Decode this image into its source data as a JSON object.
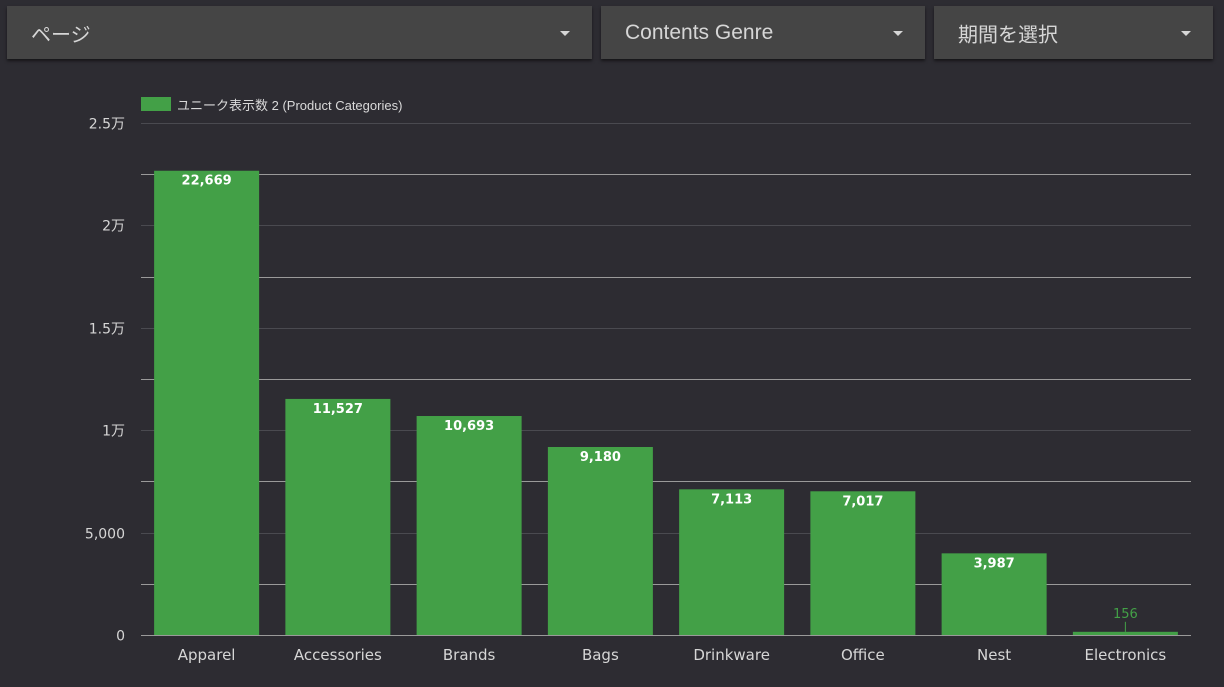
{
  "filters": {
    "page": {
      "label": "ページ"
    },
    "genre": {
      "label": "Contents Genre"
    },
    "period": {
      "label": "期間を選択"
    }
  },
  "colors": {
    "background": "#2d2c32",
    "bar": "#43a047",
    "grid_major": "#9a9a9a",
    "grid_minor": "#4a4a50",
    "axis_text": "#d6d6d6",
    "inside_label": "#ffffff",
    "outside_label": "#43a047"
  },
  "chart_data": {
    "type": "bar",
    "categories": [
      "Apparel",
      "Accessories",
      "Brands",
      "Bags",
      "Drinkware",
      "Office",
      "Nest",
      "Electronics"
    ],
    "series": [
      {
        "name": "ユニーク表示数 2 (Product Categories)",
        "values": [
          22669,
          11527,
          10693,
          9180,
          7113,
          7017,
          3987,
          156
        ]
      }
    ],
    "data_labels": [
      "22,669",
      "11,527",
      "10,693",
      "9,180",
      "7,113",
      "7,017",
      "3,987",
      "156"
    ],
    "y_ticks": [
      {
        "value": 0,
        "label": "0"
      },
      {
        "value": 5000,
        "label": "5,000"
      },
      {
        "value": 10000,
        "label": "1万"
      },
      {
        "value": 15000,
        "label": "1.5万"
      },
      {
        "value": 20000,
        "label": "2万"
      },
      {
        "value": 25000,
        "label": "2.5万"
      }
    ],
    "ylim": [
      0,
      25000
    ],
    "grid": true,
    "legend_position": "top-left",
    "title": "",
    "xlabel": "",
    "ylabel": ""
  }
}
